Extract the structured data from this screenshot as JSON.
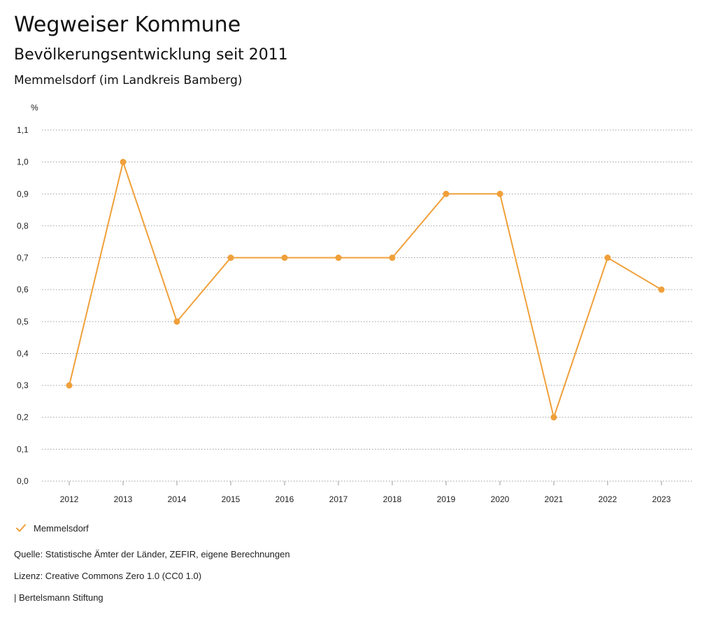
{
  "header": {
    "title": "Wegweiser Kommune",
    "subtitle": "Bevölkerungsentwicklung seit 2011",
    "region": "Memmelsdorf (im Landkreis Bamberg)"
  },
  "chart_data": {
    "type": "line",
    "ylabel": "%",
    "ylim": [
      0,
      1.1
    ],
    "yticks": [
      "0,0",
      "0,1",
      "0,2",
      "0,3",
      "0,4",
      "0,5",
      "0,6",
      "0,7",
      "0,8",
      "0,9",
      "1,0",
      "1,1"
    ],
    "x": [
      "2012",
      "2013",
      "2014",
      "2015",
      "2016",
      "2017",
      "2018",
      "2019",
      "2020",
      "2021",
      "2022",
      "2023"
    ],
    "series": [
      {
        "name": "Memmelsdorf",
        "color": "#f0a03a",
        "values": [
          0.3,
          1.0,
          0.5,
          0.7,
          0.7,
          0.7,
          0.7,
          0.9,
          0.9,
          0.2,
          0.7,
          0.6
        ]
      }
    ],
    "grid": true,
    "grid_style": "dotted",
    "legend_position": "bottom-left"
  },
  "legend": {
    "icon": "check-icon",
    "label": "Memmelsdorf"
  },
  "footer": {
    "source": "Quelle: Statistische Ämter der Länder, ZEFIR, eigene Berechnungen",
    "license": "Lizenz: Creative Commons Zero 1.0 (CC0 1.0)",
    "publisher": "| Bertelsmann Stiftung"
  }
}
